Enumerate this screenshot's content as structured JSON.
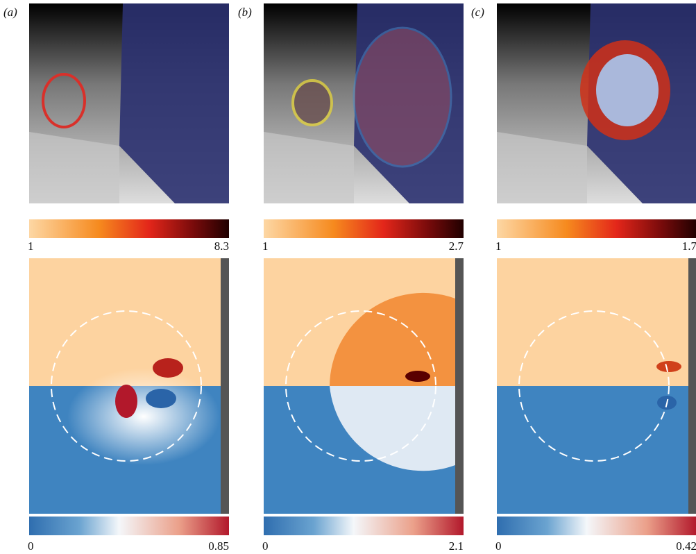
{
  "panels": [
    {
      "label": "(a)",
      "top_colorbar": {
        "min": "1",
        "max": "8.3"
      },
      "bottom_colorbar": {
        "min": "0",
        "max": "0.85"
      }
    },
    {
      "label": "(b)",
      "top_colorbar": {
        "min": "1",
        "max": "2.7"
      },
      "bottom_colorbar": {
        "min": "0",
        "max": "2.1"
      }
    },
    {
      "label": "(c)",
      "top_colorbar": {
        "min": "1",
        "max": "1.7"
      },
      "bottom_colorbar": {
        "min": "0",
        "max": "0.42"
      }
    }
  ]
}
